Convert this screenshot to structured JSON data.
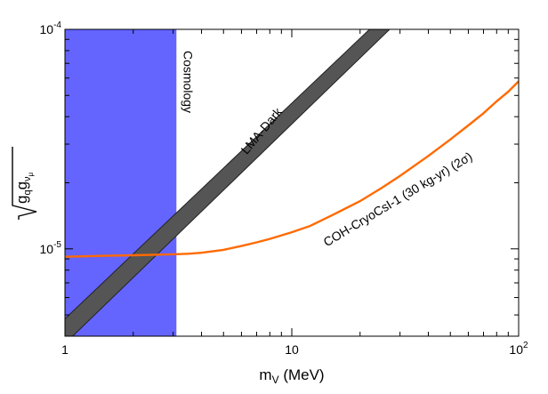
{
  "chart_data": {
    "type": "line",
    "xscale": "log",
    "yscale": "log",
    "xlim": [
      1,
      100
    ],
    "ylim": [
      4e-06,
      0.0001
    ],
    "x_ticks": [
      {
        "value": 1,
        "base": "1",
        "exp": ""
      },
      {
        "value": 10,
        "base": "10",
        "exp": ""
      },
      {
        "value": 100,
        "base": "10",
        "exp": "2"
      }
    ],
    "y_ticks": [
      {
        "value": 1e-05,
        "base": "10",
        "exp": "-5"
      },
      {
        "value": 0.0001,
        "base": "10",
        "exp": "-4"
      }
    ],
    "xlabel": {
      "main": "m",
      "sub": "V",
      "rest": " (MeV)"
    },
    "ylabel": {
      "g1": "g",
      "s1": "q",
      "g2": "g",
      "s2": "ν",
      "s3": "μ"
    },
    "regions": [
      {
        "label": "Cosmology",
        "x": [
          1,
          3.1
        ],
        "color": "#6464ff"
      }
    ],
    "bands": [
      {
        "label": "LMA-Dark",
        "color": "#555555",
        "edge": "#222222",
        "lower": [
          [
            1,
            3.7e-06
          ],
          [
            27,
            0.0001
          ]
        ],
        "upper": [
          [
            1,
            4.8e-06
          ],
          [
            22,
            0.0001
          ]
        ]
      }
    ],
    "series": [
      {
        "name": "COH-CryoCsI-1 (30 kg-yr) (2σ)",
        "color": "#ff6a00",
        "x": [
          1,
          1.5,
          2,
          2.5,
          3,
          3.5,
          4,
          5,
          6,
          7,
          8,
          10,
          12,
          15,
          20,
          25,
          30,
          40,
          50,
          60,
          70,
          80,
          90,
          100
        ],
        "y": [
          9.2e-06,
          9.3e-06,
          9.35e-06,
          9.4e-06,
          9.45e-06,
          9.5e-06,
          9.6e-06,
          9.9e-06,
          1.03e-05,
          1.07e-05,
          1.11e-05,
          1.19e-05,
          1.27e-05,
          1.42e-05,
          1.65e-05,
          1.9e-05,
          2.15e-05,
          2.65e-05,
          3.15e-05,
          3.65e-05,
          4.15e-05,
          4.7e-05,
          5.2e-05,
          5.8e-05
        ]
      }
    ]
  }
}
